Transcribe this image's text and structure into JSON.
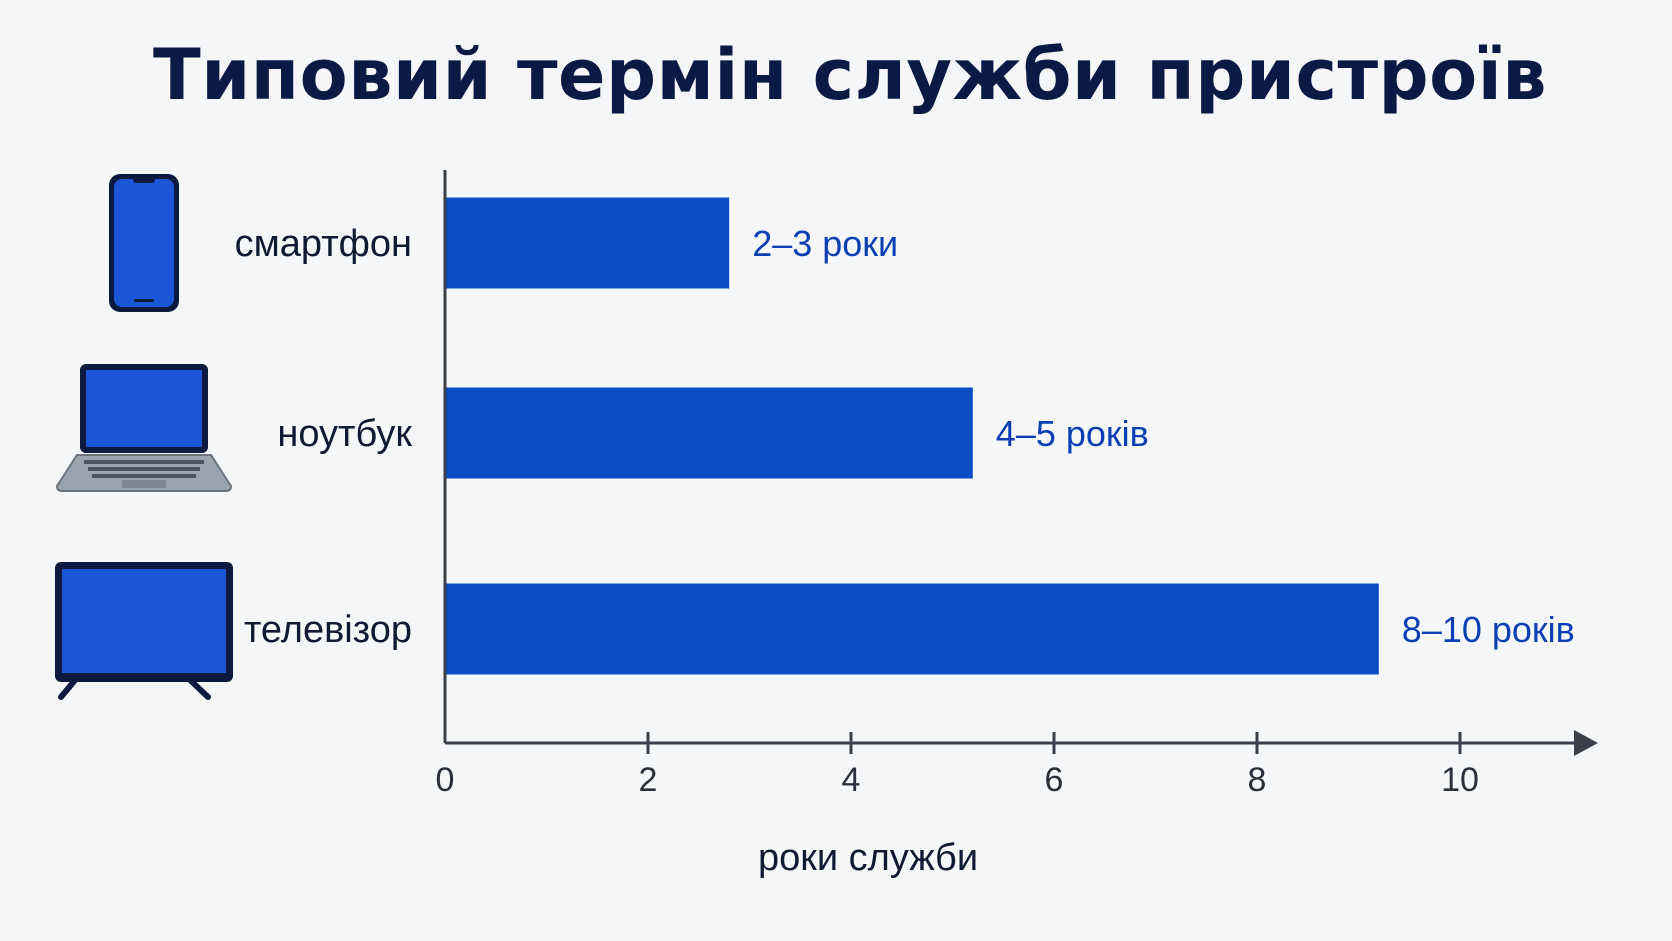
{
  "colors": {
    "bar": "#0a4cc4",
    "value_text": "#0b3fb3",
    "axis": "#3a3f4a",
    "title": "#0b1a45",
    "icon_outline": "#0d1a3f",
    "icon_screen": "#1a56d6"
  },
  "chart_data": {
    "type": "bar",
    "orientation": "horizontal",
    "title": "Типовий термін служби пристроїв",
    "xlabel": "роки служби",
    "ylabel": "",
    "xlim": [
      0,
      11
    ],
    "xticks": [
      0,
      2,
      4,
      6,
      8,
      10
    ],
    "grid": false,
    "categories": [
      "смартфон",
      "ноутбук",
      "телевізор"
    ],
    "icons": [
      "smartphone-icon",
      "laptop-icon",
      "tv-icon"
    ],
    "values": [
      2.8,
      5.2,
      9.2
    ],
    "value_labels": [
      "2–3 роки",
      "4–5 років",
      "8–10 років"
    ]
  }
}
